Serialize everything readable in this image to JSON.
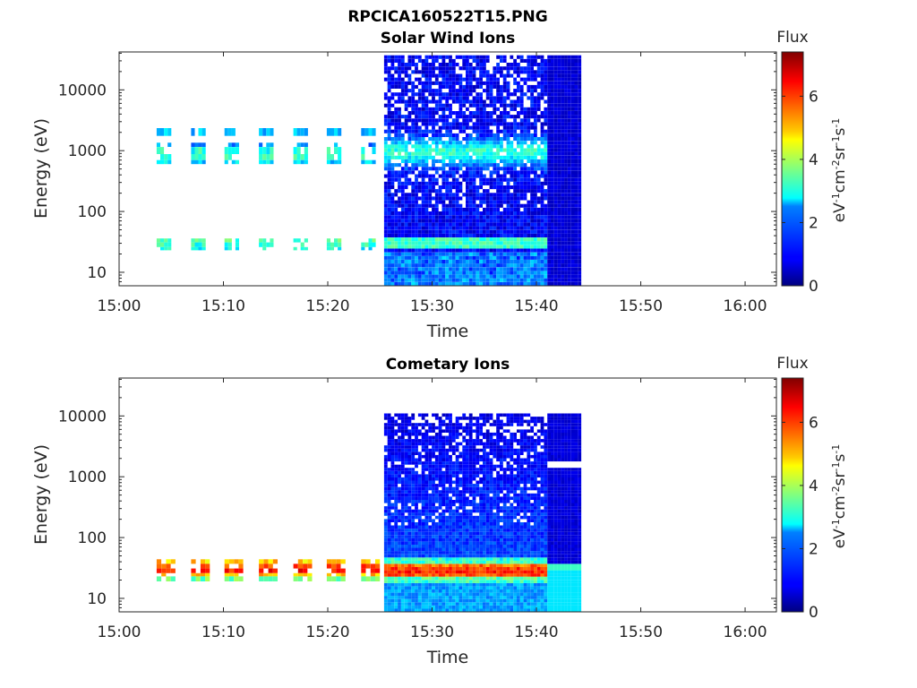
{
  "figure": {
    "filename": "RPCICA160522T15.PNG"
  },
  "chart_data": [
    {
      "type": "heatmap",
      "title": "Solar Wind Ions",
      "xlabel": "Time",
      "ylabel": "Energy (eV)",
      "x_ticks": [
        "15:00",
        "15:10",
        "15:20",
        "15:30",
        "15:40",
        "15:50",
        "16:00"
      ],
      "x_tick_minutes": [
        0,
        10,
        20,
        30,
        40,
        50,
        60
      ],
      "xlim_minutes": [
        0,
        63
      ],
      "y_scale": "log",
      "y_ticks": [
        "10",
        "100",
        "1000",
        "10000"
      ],
      "y_tick_values": [
        10,
        100,
        1000,
        10000
      ],
      "ylim": [
        6,
        42000
      ],
      "colorbar": {
        "label": "Flux",
        "unit": "eV-1cm-2sr-1s-1",
        "ticks": [
          "0",
          "2",
          "4",
          "6"
        ],
        "tick_values": [
          0,
          2,
          4,
          6
        ],
        "range": [
          0,
          7.4
        ]
      },
      "sparse_scans": {
        "start_minutes": [
          3.6,
          6.9,
          10.1,
          13.4,
          16.7,
          19.9,
          23.2
        ],
        "scan_width_minutes": 1.4,
        "bands": [
          {
            "energy_range": [
              1750,
              2350
            ],
            "flux": 2.4
          },
          {
            "energy_range": [
              1150,
              1350
            ],
            "flux": 1.9
          },
          {
            "energy_range": [
              880,
              1150
            ],
            "flux": 3.0
          },
          {
            "energy_range": [
              700,
              880
            ],
            "flux": 3.3
          },
          {
            "energy_range": [
              600,
              700
            ],
            "flux": 2.5
          },
          {
            "energy_range": [
              31,
              36
            ],
            "flux": 3.3
          },
          {
            "energy_range": [
              26,
              31
            ],
            "flux": 3.1
          },
          {
            "energy_range": [
              23,
              26
            ],
            "flux": 2.8
          }
        ]
      },
      "dense_block": {
        "time_range_minutes": [
          25.4,
          44.3
        ],
        "energy_range": [
          6,
          37000
        ],
        "flux_range_typical": [
          0.3,
          3.6
        ],
        "peak_energy_ev": 950,
        "low_band_energy_ev": [
          24,
          36
        ],
        "low_band_flux": 3.2
      }
    },
    {
      "type": "heatmap",
      "title": "Cometary Ions",
      "xlabel": "Time",
      "ylabel": "Energy (eV)",
      "x_ticks": [
        "15:00",
        "15:10",
        "15:20",
        "15:30",
        "15:40",
        "15:50",
        "16:00"
      ],
      "x_tick_minutes": [
        0,
        10,
        20,
        30,
        40,
        50,
        60
      ],
      "xlim_minutes": [
        0,
        63
      ],
      "y_scale": "log",
      "y_ticks": [
        "10",
        "100",
        "1000",
        "10000"
      ],
      "y_tick_values": [
        10,
        100,
        1000,
        10000
      ],
      "ylim": [
        6,
        42000
      ],
      "colorbar": {
        "label": "Flux",
        "unit": "eV-1cm-2sr-1s-1",
        "ticks": [
          "0",
          "2",
          "4",
          "6"
        ],
        "tick_values": [
          0,
          2,
          4,
          6
        ],
        "range": [
          0,
          7.4
        ]
      },
      "sparse_scans": {
        "start_minutes": [
          3.6,
          6.9,
          10.1,
          13.4,
          16.7,
          19.9,
          23.2
        ],
        "scan_width_minutes": 1.8,
        "bands": [
          {
            "energy_range": [
              37,
              44
            ],
            "flux": 5.0
          },
          {
            "energy_range": [
              31,
              37
            ],
            "flux": 5.9
          },
          {
            "energy_range": [
              26,
              31
            ],
            "flux": 6.3
          },
          {
            "energy_range": [
              23,
              26
            ],
            "flux": 5.2
          },
          {
            "energy_range": [
              19,
              23
            ],
            "flux": 3.6
          }
        ]
      },
      "dense_block": {
        "time_range_minutes": [
          25.4,
          44.3
        ],
        "energy_range": [
          6,
          11000
        ],
        "flux_range_typical": [
          0.2,
          2.4
        ],
        "peak_energy_ev": 28,
        "peak_flux": 6.4
      }
    }
  ]
}
